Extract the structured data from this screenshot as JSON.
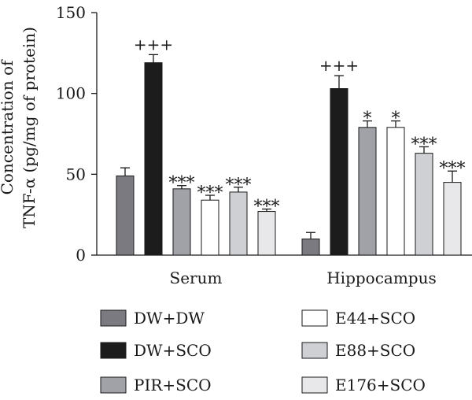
{
  "chart_data": {
    "type": "bar",
    "title": "",
    "ylabel_lines": [
      "Concentration of",
      "TNF-α (pg/mg of protein)"
    ],
    "ylim": [
      0,
      150
    ],
    "yticks": [
      0,
      50,
      100,
      150
    ],
    "grid": false,
    "legend_position": "bottom",
    "categories": [
      "Serum",
      "Hippocampus"
    ],
    "series": [
      {
        "name": "DW+DW",
        "color": "#7a7a80",
        "values": [
          49,
          10
        ],
        "errors": [
          5,
          4
        ],
        "marks": [
          "",
          ""
        ]
      },
      {
        "name": "DW+SCO",
        "color": "#1c1c1c",
        "values": [
          119,
          103
        ],
        "errors": [
          5,
          8
        ],
        "marks": [
          "+++",
          "+++"
        ]
      },
      {
        "name": "PIR+SCO",
        "color": "#a0a2a8",
        "values": [
          41,
          79
        ],
        "errors": [
          2,
          4
        ],
        "marks": [
          "***",
          "*"
        ]
      },
      {
        "name": "E44+SCO",
        "color": "#ffffff",
        "values": [
          34,
          79
        ],
        "errors": [
          3,
          4
        ],
        "marks": [
          "***",
          "*"
        ]
      },
      {
        "name": "E88+SCO",
        "color": "#cfd0d4",
        "values": [
          39,
          63
        ],
        "errors": [
          3,
          4
        ],
        "marks": [
          "***",
          "***"
        ]
      },
      {
        "name": "E176+SCO",
        "color": "#e8e8ea",
        "values": [
          27,
          45
        ],
        "errors": [
          1.5,
          7
        ],
        "marks": [
          "***",
          "***"
        ]
      }
    ]
  }
}
